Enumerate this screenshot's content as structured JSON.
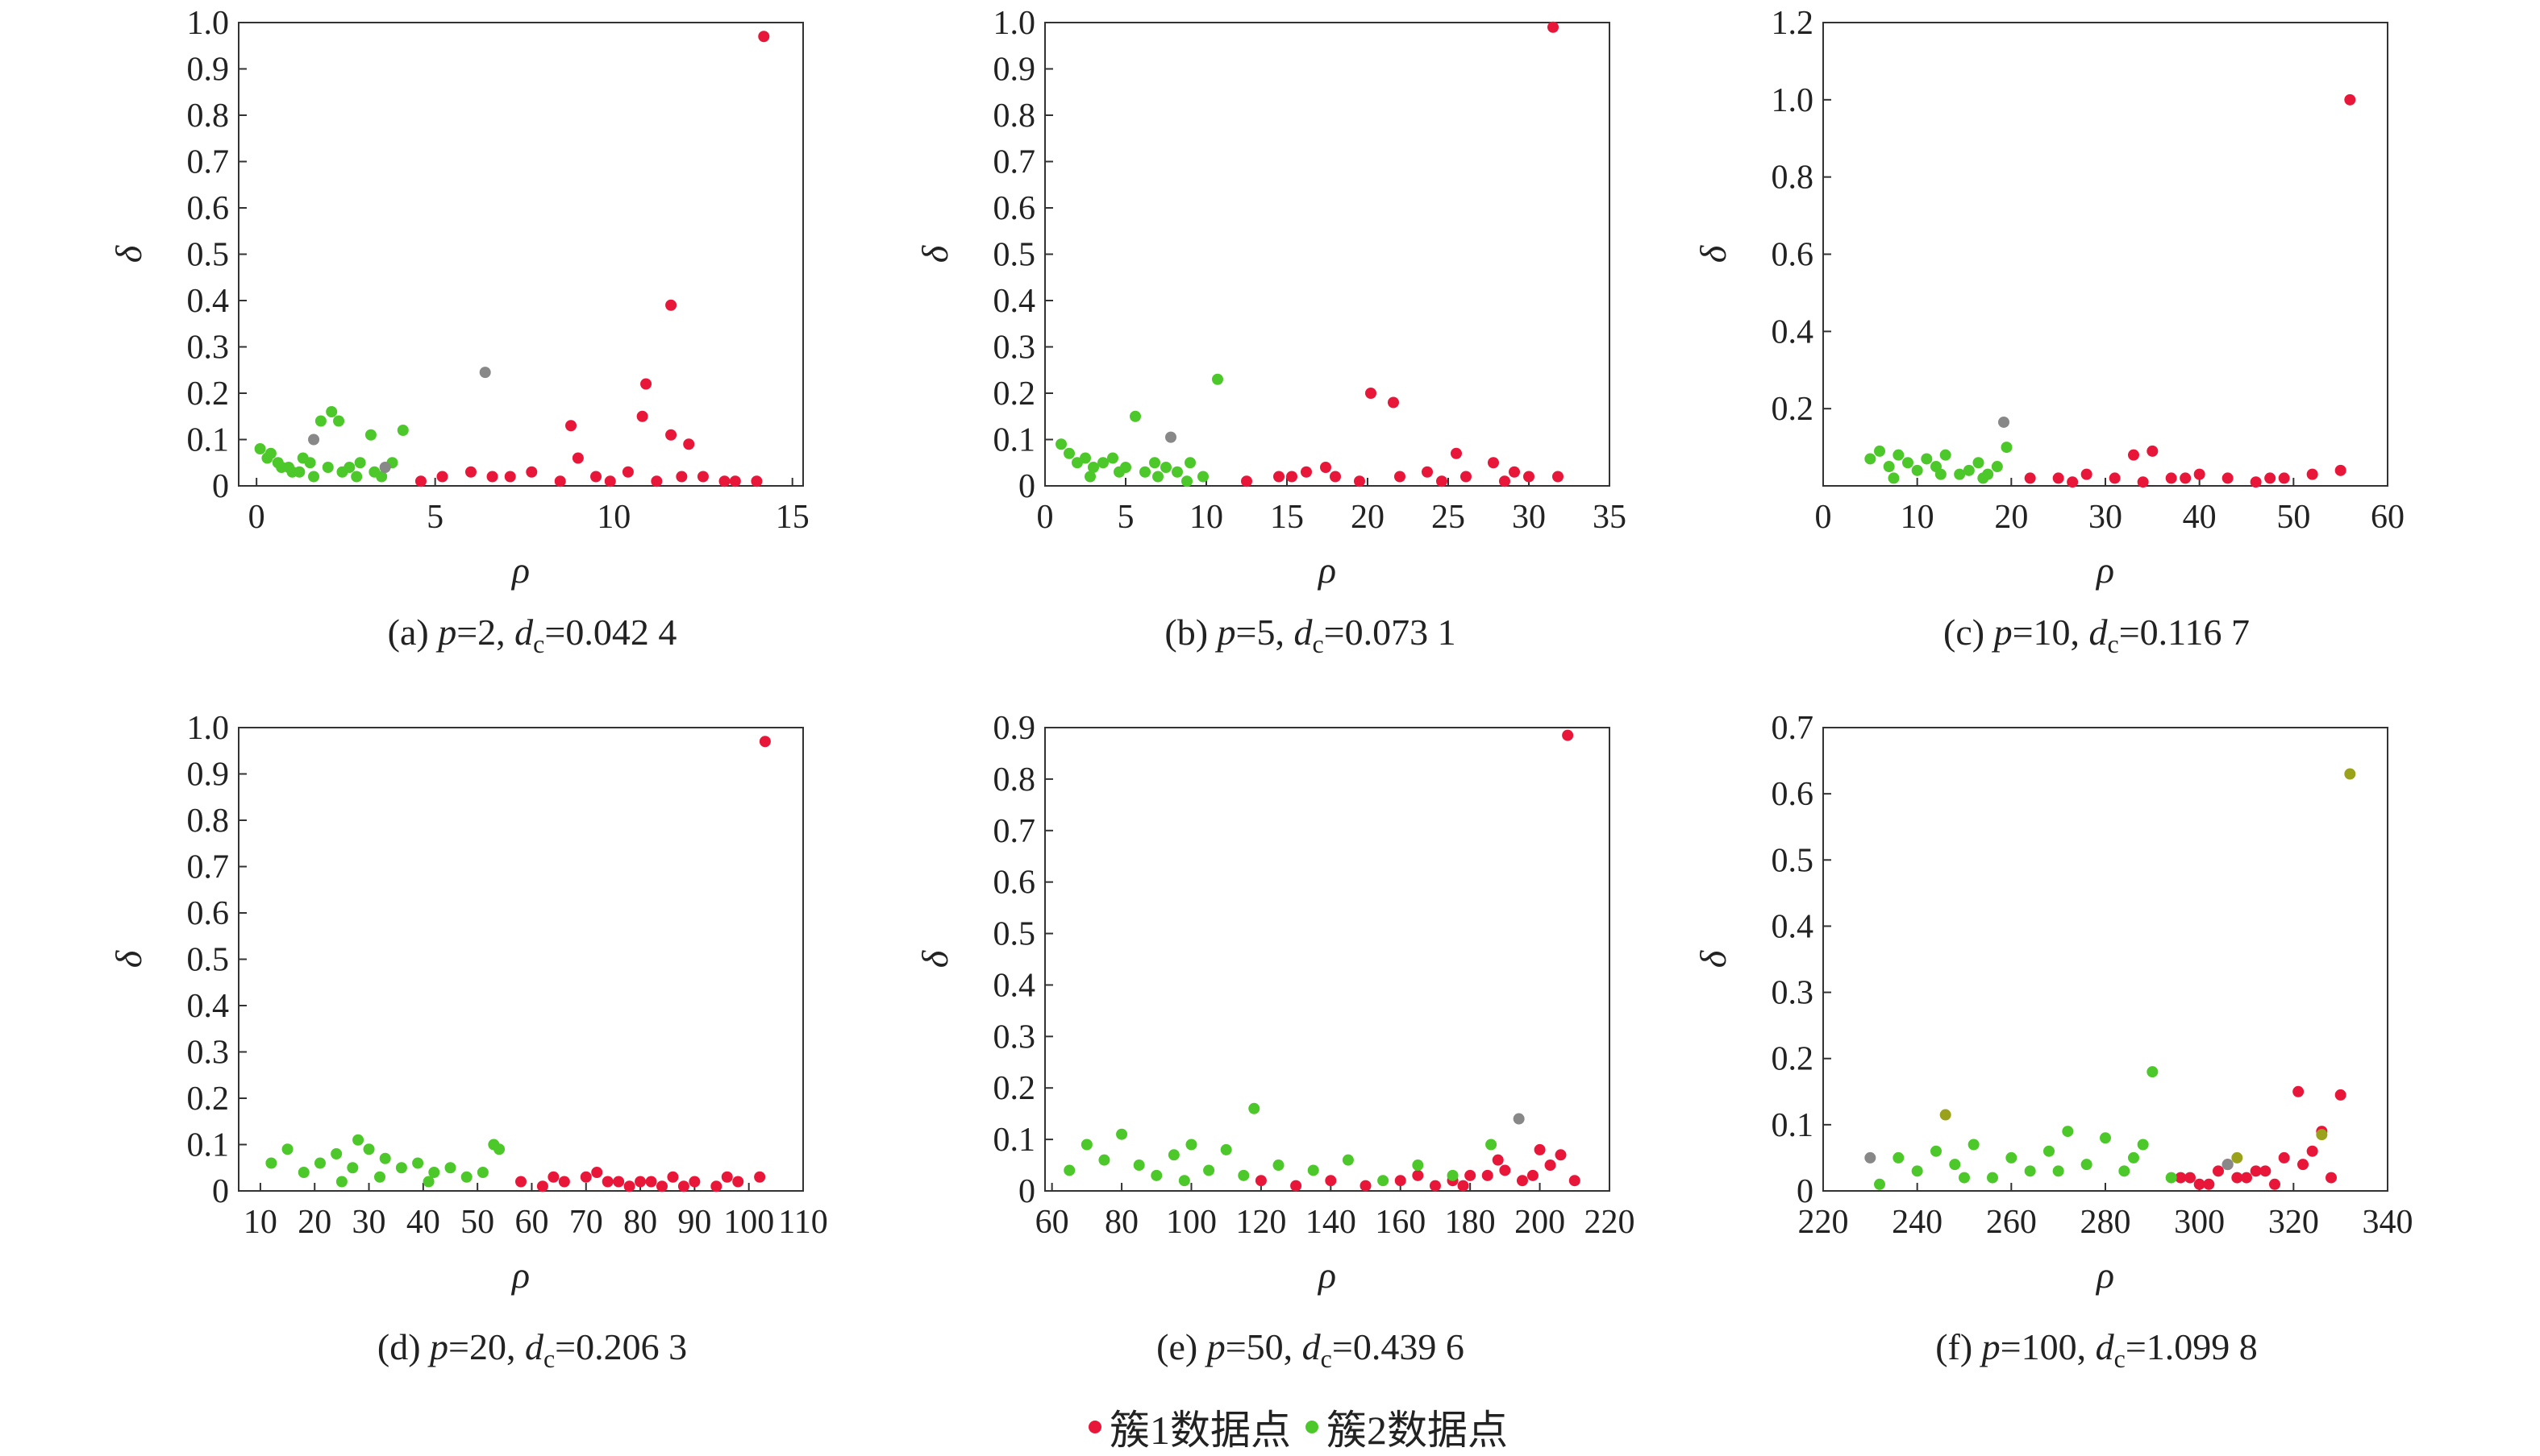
{
  "colors": {
    "cluster1": "#e8173a",
    "cluster2": "#4dc82a",
    "mixed": "#9aa21c",
    "outlier": "#888888"
  },
  "legend": {
    "cluster1": "簇1数据点",
    "cluster2": "簇2数据点"
  },
  "chart_data": [
    {
      "type": "scatter",
      "caption": {
        "prefix": "(a) ",
        "p_eq": "=2, ",
        "dc_eq": "=0.042 4"
      },
      "xlabel": "ρ",
      "ylabel": "δ",
      "xlim": [
        -0.5,
        15.3
      ],
      "ylim": [
        0,
        1.0
      ],
      "xticks": [
        "0",
        "5",
        "10",
        "15"
      ],
      "xtick_values": [
        0,
        5,
        10,
        15
      ],
      "yticks": [
        "0",
        "0.1",
        "0.2",
        "0.3",
        "0.4",
        "0.5",
        "0.6",
        "0.7",
        "0.8",
        "0.9",
        "1.0"
      ],
      "ytick_values": [
        0,
        0.1,
        0.2,
        0.3,
        0.4,
        0.5,
        0.6,
        0.7,
        0.8,
        0.9,
        1.0
      ],
      "series": [
        {
          "name": "簇1数据点",
          "color": "cluster1",
          "x": [
            14.2,
            11.6,
            10.9,
            10.8,
            8.8,
            11.6,
            12.1,
            9.0,
            7.1,
            6.0,
            8.5,
            9.5,
            10.4,
            11.2,
            12.5,
            13.4,
            14.0,
            5.2,
            7.7,
            9.9,
            11.9,
            13.1,
            4.6,
            6.6
          ],
          "y": [
            0.97,
            0.39,
            0.22,
            0.15,
            0.13,
            0.11,
            0.09,
            0.06,
            0.02,
            0.03,
            0.01,
            0.02,
            0.03,
            0.01,
            0.02,
            0.01,
            0.01,
            0.02,
            0.03,
            0.01,
            0.02,
            0.01,
            0.01,
            0.02
          ]
        },
        {
          "name": "簇2数据点",
          "color": "cluster2",
          "x": [
            0.1,
            0.3,
            0.6,
            0.9,
            1.2,
            1.5,
            1.8,
            2.1,
            2.3,
            2.4,
            2.6,
            2.9,
            3.2,
            3.5,
            3.8,
            4.1,
            0.4,
            1.0,
            1.6,
            2.0,
            2.8,
            3.3,
            1.3,
            0.7
          ],
          "y": [
            0.08,
            0.06,
            0.05,
            0.04,
            0.03,
            0.05,
            0.14,
            0.16,
            0.14,
            0.03,
            0.04,
            0.05,
            0.11,
            0.02,
            0.05,
            0.12,
            0.07,
            0.03,
            0.02,
            0.04,
            0.02,
            0.03,
            0.06,
            0.04
          ]
        },
        {
          "name": "",
          "color": "outlier",
          "x": [
            6.4,
            1.6,
            3.6
          ],
          "y": [
            0.245,
            0.1,
            0.04
          ]
        }
      ]
    },
    {
      "type": "scatter",
      "caption": {
        "prefix": "(b) ",
        "p_eq": "=5, ",
        "dc_eq": "=0.073 1"
      },
      "xlabel": "ρ",
      "ylabel": "δ",
      "xlim": [
        0,
        35
      ],
      "ylim": [
        0,
        1.0
      ],
      "xticks": [
        "0",
        "5",
        "10",
        "15",
        "20",
        "25",
        "30",
        "35"
      ],
      "xtick_values": [
        0,
        5,
        10,
        15,
        20,
        25,
        30,
        35
      ],
      "yticks": [
        "0",
        "0.1",
        "0.2",
        "0.3",
        "0.4",
        "0.5",
        "0.6",
        "0.7",
        "0.8",
        "0.9",
        "1.0"
      ],
      "ytick_values": [
        0,
        0.1,
        0.2,
        0.3,
        0.4,
        0.5,
        0.6,
        0.7,
        0.8,
        0.9,
        1.0
      ],
      "series": [
        {
          "name": "簇1数据点",
          "color": "cluster1",
          "x": [
            31.5,
            20.2,
            21.6,
            25.5,
            27.8,
            31.8,
            12.5,
            14.5,
            16.2,
            18.0,
            19.5,
            22.0,
            23.7,
            26.1,
            28.5,
            30.0,
            15.3,
            17.4,
            24.6,
            29.1
          ],
          "y": [
            0.99,
            0.2,
            0.18,
            0.07,
            0.05,
            0.02,
            0.01,
            0.02,
            0.03,
            0.02,
            0.01,
            0.02,
            0.03,
            0.02,
            0.01,
            0.02,
            0.02,
            0.04,
            0.01,
            0.03
          ]
        },
        {
          "name": "簇2数据点",
          "color": "cluster2",
          "x": [
            1.0,
            1.5,
            2.0,
            2.5,
            3.0,
            3.6,
            4.2,
            5.0,
            5.6,
            6.2,
            6.8,
            7.5,
            8.2,
            9.0,
            9.8,
            10.7,
            2.8,
            4.6,
            7.0,
            8.8
          ],
          "y": [
            0.09,
            0.07,
            0.05,
            0.06,
            0.04,
            0.05,
            0.06,
            0.04,
            0.15,
            0.03,
            0.05,
            0.04,
            0.03,
            0.05,
            0.02,
            0.23,
            0.02,
            0.03,
            0.02,
            0.01
          ]
        },
        {
          "name": "",
          "color": "outlier",
          "x": [
            7.8
          ],
          "y": [
            0.105
          ]
        }
      ]
    },
    {
      "type": "scatter",
      "caption": {
        "prefix": "(c) ",
        "p_eq": "=10, ",
        "dc_eq": "=0.116 7"
      },
      "xlabel": "ρ",
      "ylabel": "δ",
      "xlim": [
        0,
        60
      ],
      "ylim": [
        0,
        1.2
      ],
      "xticks": [
        "0",
        "10",
        "20",
        "30",
        "40",
        "50",
        "60"
      ],
      "xtick_values": [
        0,
        10,
        20,
        30,
        40,
        50,
        60
      ],
      "yticks": [
        "0.2",
        "0.4",
        "0.6",
        "0.8",
        "1.0",
        "1.2"
      ],
      "ytick_values": [
        0.2,
        0.4,
        0.6,
        0.8,
        1.0,
        1.2
      ],
      "series": [
        {
          "name": "簇1数据点",
          "color": "cluster1",
          "x": [
            56.0,
            35.0,
            33.0,
            22,
            25,
            28,
            31,
            34,
            37,
            40,
            43,
            46,
            49,
            52,
            55,
            26.5,
            38.5,
            47.5
          ],
          "y": [
            1.0,
            0.09,
            0.08,
            0.02,
            0.02,
            0.03,
            0.02,
            0.01,
            0.02,
            0.03,
            0.02,
            0.01,
            0.02,
            0.03,
            0.04,
            0.01,
            0.02,
            0.02
          ]
        },
        {
          "name": "簇2数据点",
          "color": "cluster2",
          "x": [
            5.0,
            6.0,
            7.0,
            8.0,
            9.0,
            10.0,
            11.0,
            12.0,
            13.0,
            14.5,
            15.5,
            16.5,
            17.5,
            18.5,
            19.5,
            7.5,
            12.5,
            17.0
          ],
          "y": [
            0.07,
            0.09,
            0.05,
            0.08,
            0.06,
            0.04,
            0.07,
            0.05,
            0.08,
            0.03,
            0.04,
            0.06,
            0.03,
            0.05,
            0.1,
            0.02,
            0.03,
            0.02
          ]
        },
        {
          "name": "",
          "color": "outlier",
          "x": [
            19.2
          ],
          "y": [
            0.165
          ]
        }
      ]
    },
    {
      "type": "scatter",
      "caption": {
        "prefix": "(d) ",
        "p_eq": "=20, ",
        "dc_eq": "=0.206 3"
      },
      "xlabel": "ρ",
      "ylabel": "δ",
      "xlim": [
        6,
        110
      ],
      "ylim": [
        0,
        1.0
      ],
      "xticks": [
        "10",
        "20",
        "30",
        "40",
        "50",
        "60",
        "70",
        "80",
        "90",
        "100",
        "110"
      ],
      "xtick_values": [
        10,
        20,
        30,
        40,
        50,
        60,
        70,
        80,
        90,
        100,
        110
      ],
      "yticks": [
        "0",
        "0.1",
        "0.2",
        "0.3",
        "0.4",
        "0.5",
        "0.6",
        "0.7",
        "0.8",
        "0.9",
        "1.0"
      ],
      "ytick_values": [
        0,
        0.1,
        0.2,
        0.3,
        0.4,
        0.5,
        0.6,
        0.7,
        0.8,
        0.9,
        1.0
      ],
      "series": [
        {
          "name": "簇1数据点",
          "color": "cluster1",
          "x": [
            103.0,
            58,
            62,
            66,
            70,
            74,
            78,
            82,
            86,
            90,
            94,
            98,
            102,
            64,
            72,
            80,
            88,
            96,
            76,
            84
          ],
          "y": [
            0.97,
            0.02,
            0.01,
            0.02,
            0.03,
            0.02,
            0.01,
            0.02,
            0.03,
            0.02,
            0.01,
            0.02,
            0.03,
            0.03,
            0.04,
            0.02,
            0.01,
            0.03,
            0.02,
            0.01
          ]
        },
        {
          "name": "簇2数据点",
          "color": "cluster2",
          "x": [
            12,
            15,
            18,
            21,
            24,
            27,
            28,
            30,
            33,
            36,
            39,
            42,
            45,
            48,
            51,
            54,
            25,
            32,
            41,
            53
          ],
          "y": [
            0.06,
            0.09,
            0.04,
            0.06,
            0.08,
            0.05,
            0.11,
            0.09,
            0.07,
            0.05,
            0.06,
            0.04,
            0.05,
            0.03,
            0.04,
            0.09,
            0.02,
            0.03,
            0.02,
            0.1
          ]
        }
      ]
    },
    {
      "type": "scatter",
      "caption": {
        "prefix": "(e) ",
        "p_eq": "=50, ",
        "dc_eq": "=0.439 6"
      },
      "xlabel": "ρ",
      "ylabel": "δ",
      "xlim": [
        58,
        220
      ],
      "ylim": [
        0,
        0.9
      ],
      "xticks": [
        "60",
        "80",
        "100",
        "120",
        "140",
        "160",
        "180",
        "200",
        "220"
      ],
      "xtick_values": [
        60,
        80,
        100,
        120,
        140,
        160,
        180,
        200,
        220
      ],
      "yticks": [
        "0",
        "0.1",
        "0.2",
        "0.3",
        "0.4",
        "0.5",
        "0.6",
        "0.7",
        "0.8",
        "0.9"
      ],
      "ytick_values": [
        0,
        0.1,
        0.2,
        0.3,
        0.4,
        0.5,
        0.6,
        0.7,
        0.8,
        0.9
      ],
      "series": [
        {
          "name": "簇1数据点",
          "color": "cluster1",
          "x": [
            208,
            200,
            203,
            206,
            185,
            190,
            195,
            180,
            175,
            170,
            165,
            160,
            150,
            140,
            130,
            120,
            188,
            198,
            178,
            210
          ],
          "y": [
            0.885,
            0.08,
            0.05,
            0.07,
            0.03,
            0.04,
            0.02,
            0.03,
            0.02,
            0.01,
            0.03,
            0.02,
            0.01,
            0.02,
            0.01,
            0.02,
            0.06,
            0.03,
            0.01,
            0.02
          ]
        },
        {
          "name": "簇2数据点",
          "color": "cluster2",
          "x": [
            65,
            70,
            75,
            80,
            85,
            90,
            95,
            100,
            105,
            110,
            115,
            118,
            125,
            135,
            145,
            155,
            165,
            175,
            186,
            98
          ],
          "y": [
            0.04,
            0.09,
            0.06,
            0.11,
            0.05,
            0.03,
            0.07,
            0.09,
            0.04,
            0.08,
            0.03,
            0.16,
            0.05,
            0.04,
            0.06,
            0.02,
            0.05,
            0.03,
            0.09,
            0.02
          ]
        },
        {
          "name": "",
          "color": "outlier",
          "x": [
            194
          ],
          "y": [
            0.14
          ]
        }
      ]
    },
    {
      "type": "scatter",
      "caption": {
        "prefix": "(f) ",
        "p_eq": "=100, ",
        "dc_eq": "=1.099 8"
      },
      "xlabel": "ρ",
      "ylabel": "δ",
      "xlim": [
        220,
        340
      ],
      "ylim": [
        0,
        0.7
      ],
      "xticks": [
        "220",
        "240",
        "260",
        "280",
        "300",
        "320",
        "340"
      ],
      "xtick_values": [
        220,
        240,
        260,
        280,
        300,
        320,
        340
      ],
      "yticks": [
        "0",
        "0.1",
        "0.2",
        "0.3",
        "0.4",
        "0.5",
        "0.6",
        "0.7"
      ],
      "ytick_values": [
        0,
        0.1,
        0.2,
        0.3,
        0.4,
        0.5,
        0.6,
        0.7
      ],
      "series": [
        {
          "name": "簇1数据点",
          "color": "cluster1",
          "x": [
            321,
            330,
            326,
            318,
            314,
            310,
            306,
            302,
            298,
            324,
            328,
            316,
            312,
            308,
            322,
            300,
            304,
            296
          ],
          "y": [
            0.15,
            0.145,
            0.09,
            0.05,
            0.03,
            0.02,
            0.04,
            0.01,
            0.02,
            0.06,
            0.02,
            0.01,
            0.03,
            0.02,
            0.04,
            0.01,
            0.03,
            0.02
          ]
        },
        {
          "name": "簇2数据点",
          "color": "cluster2",
          "x": [
            236,
            240,
            244,
            248,
            252,
            256,
            260,
            264,
            268,
            272,
            276,
            280,
            284,
            288,
            290,
            294,
            250,
            270,
            286,
            232
          ],
          "y": [
            0.05,
            0.03,
            0.06,
            0.04,
            0.07,
            0.02,
            0.05,
            0.03,
            0.06,
            0.09,
            0.04,
            0.08,
            0.03,
            0.07,
            0.18,
            0.02,
            0.02,
            0.03,
            0.05,
            0.01
          ]
        },
        {
          "name": "",
          "color": "mixed",
          "x": [
            332,
            246,
            308,
            326
          ],
          "y": [
            0.63,
            0.115,
            0.05,
            0.085
          ]
        },
        {
          "name": "",
          "color": "outlier",
          "x": [
            230,
            306
          ],
          "y": [
            0.05,
            0.04
          ]
        }
      ]
    }
  ]
}
